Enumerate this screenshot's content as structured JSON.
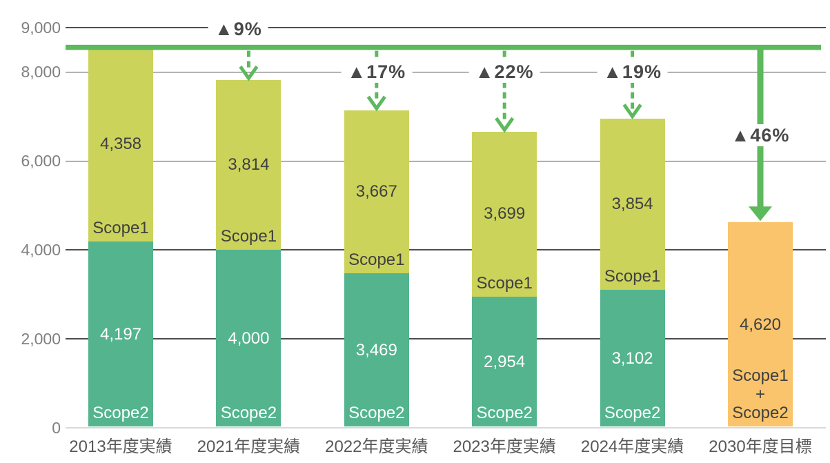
{
  "chart_data": {
    "type": "bar",
    "stacked": true,
    "title": "",
    "legend": "none",
    "grid": true,
    "ylim": [
      0,
      9000
    ],
    "yticks": [
      0,
      2000,
      4000,
      6000,
      8000,
      9000
    ],
    "xlabel": "",
    "ylabel": "",
    "categories": [
      "2013年度実績",
      "2021年度実績",
      "2022年度実績",
      "2023年度実績",
      "2024年度実績",
      "2030年度目標"
    ],
    "series": [
      {
        "name": "Scope2",
        "color": "#53b48e",
        "text_color": "#ffffff",
        "values": [
          4197,
          4000,
          3469,
          2954,
          3102,
          null
        ]
      },
      {
        "name": "Scope1",
        "color": "#cbd35b",
        "text_color": "#404040",
        "values": [
          4358,
          3814,
          3667,
          3699,
          3854,
          null
        ]
      },
      {
        "name": "Scope1+Scope2",
        "label_lines": [
          "Scope1",
          "+",
          "Scope2"
        ],
        "color": "#f9c46b",
        "text_color": "#404040",
        "values": [
          null,
          null,
          null,
          null,
          null,
          4620
        ]
      }
    ],
    "totals": [
      8555,
      7814,
      7136,
      6653,
      6956,
      4620
    ],
    "baseline": {
      "value": 8555,
      "source_category": "2013年度実績",
      "color": "#5cb95c"
    },
    "reduction_labels": [
      {
        "category_index": 1,
        "text": "▲9%",
        "arrow": "dashed"
      },
      {
        "category_index": 2,
        "text": "▲17%",
        "arrow": "dashed"
      },
      {
        "category_index": 3,
        "text": "▲22%",
        "arrow": "dashed"
      },
      {
        "category_index": 4,
        "text": "▲19%",
        "arrow": "dashed"
      },
      {
        "category_index": 5,
        "text": "▲46%",
        "arrow": "solid"
      }
    ]
  },
  "colors": {
    "gridline": "#4d4d4d",
    "zero_line": "#d9d9d9",
    "y_tick_text": "#7f7f7f",
    "x_tick_text": "#595959",
    "pct_text": "#494949",
    "arrow_green": "#5cb95c"
  }
}
